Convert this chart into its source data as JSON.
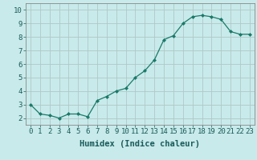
{
  "x": [
    0,
    1,
    2,
    3,
    4,
    5,
    6,
    7,
    8,
    9,
    10,
    11,
    12,
    13,
    14,
    15,
    16,
    17,
    18,
    19,
    20,
    21,
    22,
    23
  ],
  "y": [
    3.0,
    2.3,
    2.2,
    2.0,
    2.3,
    2.3,
    2.1,
    3.3,
    3.6,
    4.0,
    4.2,
    5.0,
    5.5,
    6.3,
    7.8,
    8.1,
    9.0,
    9.5,
    9.6,
    9.5,
    9.3,
    8.4,
    8.2,
    8.2
  ],
  "line_color": "#1a7a6a",
  "marker_color": "#1a7a6a",
  "bg_color": "#c8eaea",
  "grid_color": "#b0c8c8",
  "xlabel": "Humidex (Indice chaleur)",
  "xlim": [
    -0.5,
    23.5
  ],
  "ylim": [
    1.5,
    10.5
  ],
  "yticks": [
    2,
    3,
    4,
    5,
    6,
    7,
    8,
    9,
    10
  ],
  "xticks": [
    0,
    1,
    2,
    3,
    4,
    5,
    6,
    7,
    8,
    9,
    10,
    11,
    12,
    13,
    14,
    15,
    16,
    17,
    18,
    19,
    20,
    21,
    22,
    23
  ],
  "xlabel_fontsize": 7.5,
  "tick_fontsize": 6.5
}
